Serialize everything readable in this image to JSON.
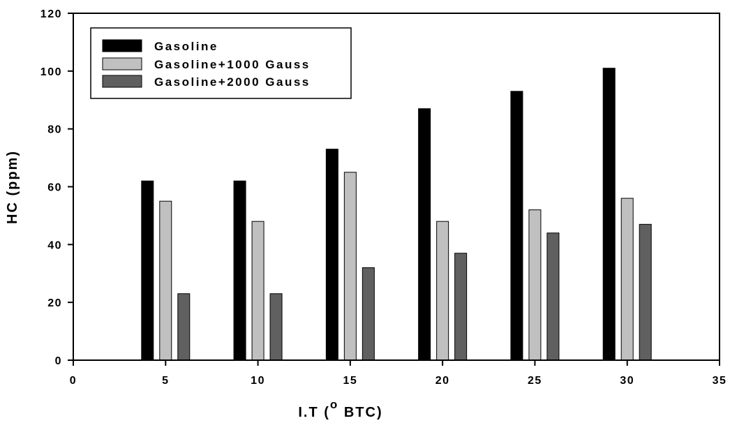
{
  "chart_data": {
    "type": "bar",
    "xlabel": "I.T (",
    "xlabel_superscript": "o",
    "xlabel_suffix": " BTC)",
    "ylabel": "HC (ppm)",
    "xlim": [
      0,
      35
    ],
    "ylim": [
      0,
      120
    ],
    "xticks": [
      "0",
      "5",
      "10",
      "15",
      "20",
      "25",
      "30",
      "35"
    ],
    "yticks": [
      "0",
      "20",
      "40",
      "60",
      "80",
      "100",
      "120"
    ],
    "categories": [
      5,
      10,
      15,
      20,
      25,
      30
    ],
    "series": [
      {
        "name": "Gasoline",
        "color": "#000000",
        "values": [
          62,
          62,
          73,
          87,
          93,
          101
        ]
      },
      {
        "name": "Gasoline+1000 Gauss",
        "color": "#c0c0c0",
        "values": [
          55,
          48,
          65,
          48,
          52,
          56
        ]
      },
      {
        "name": "Gasoline+2000 Gauss",
        "color": "#606060",
        "values": [
          23,
          23,
          32,
          37,
          44,
          47
        ]
      }
    ],
    "legend_position": "top-left",
    "grid": false
  }
}
